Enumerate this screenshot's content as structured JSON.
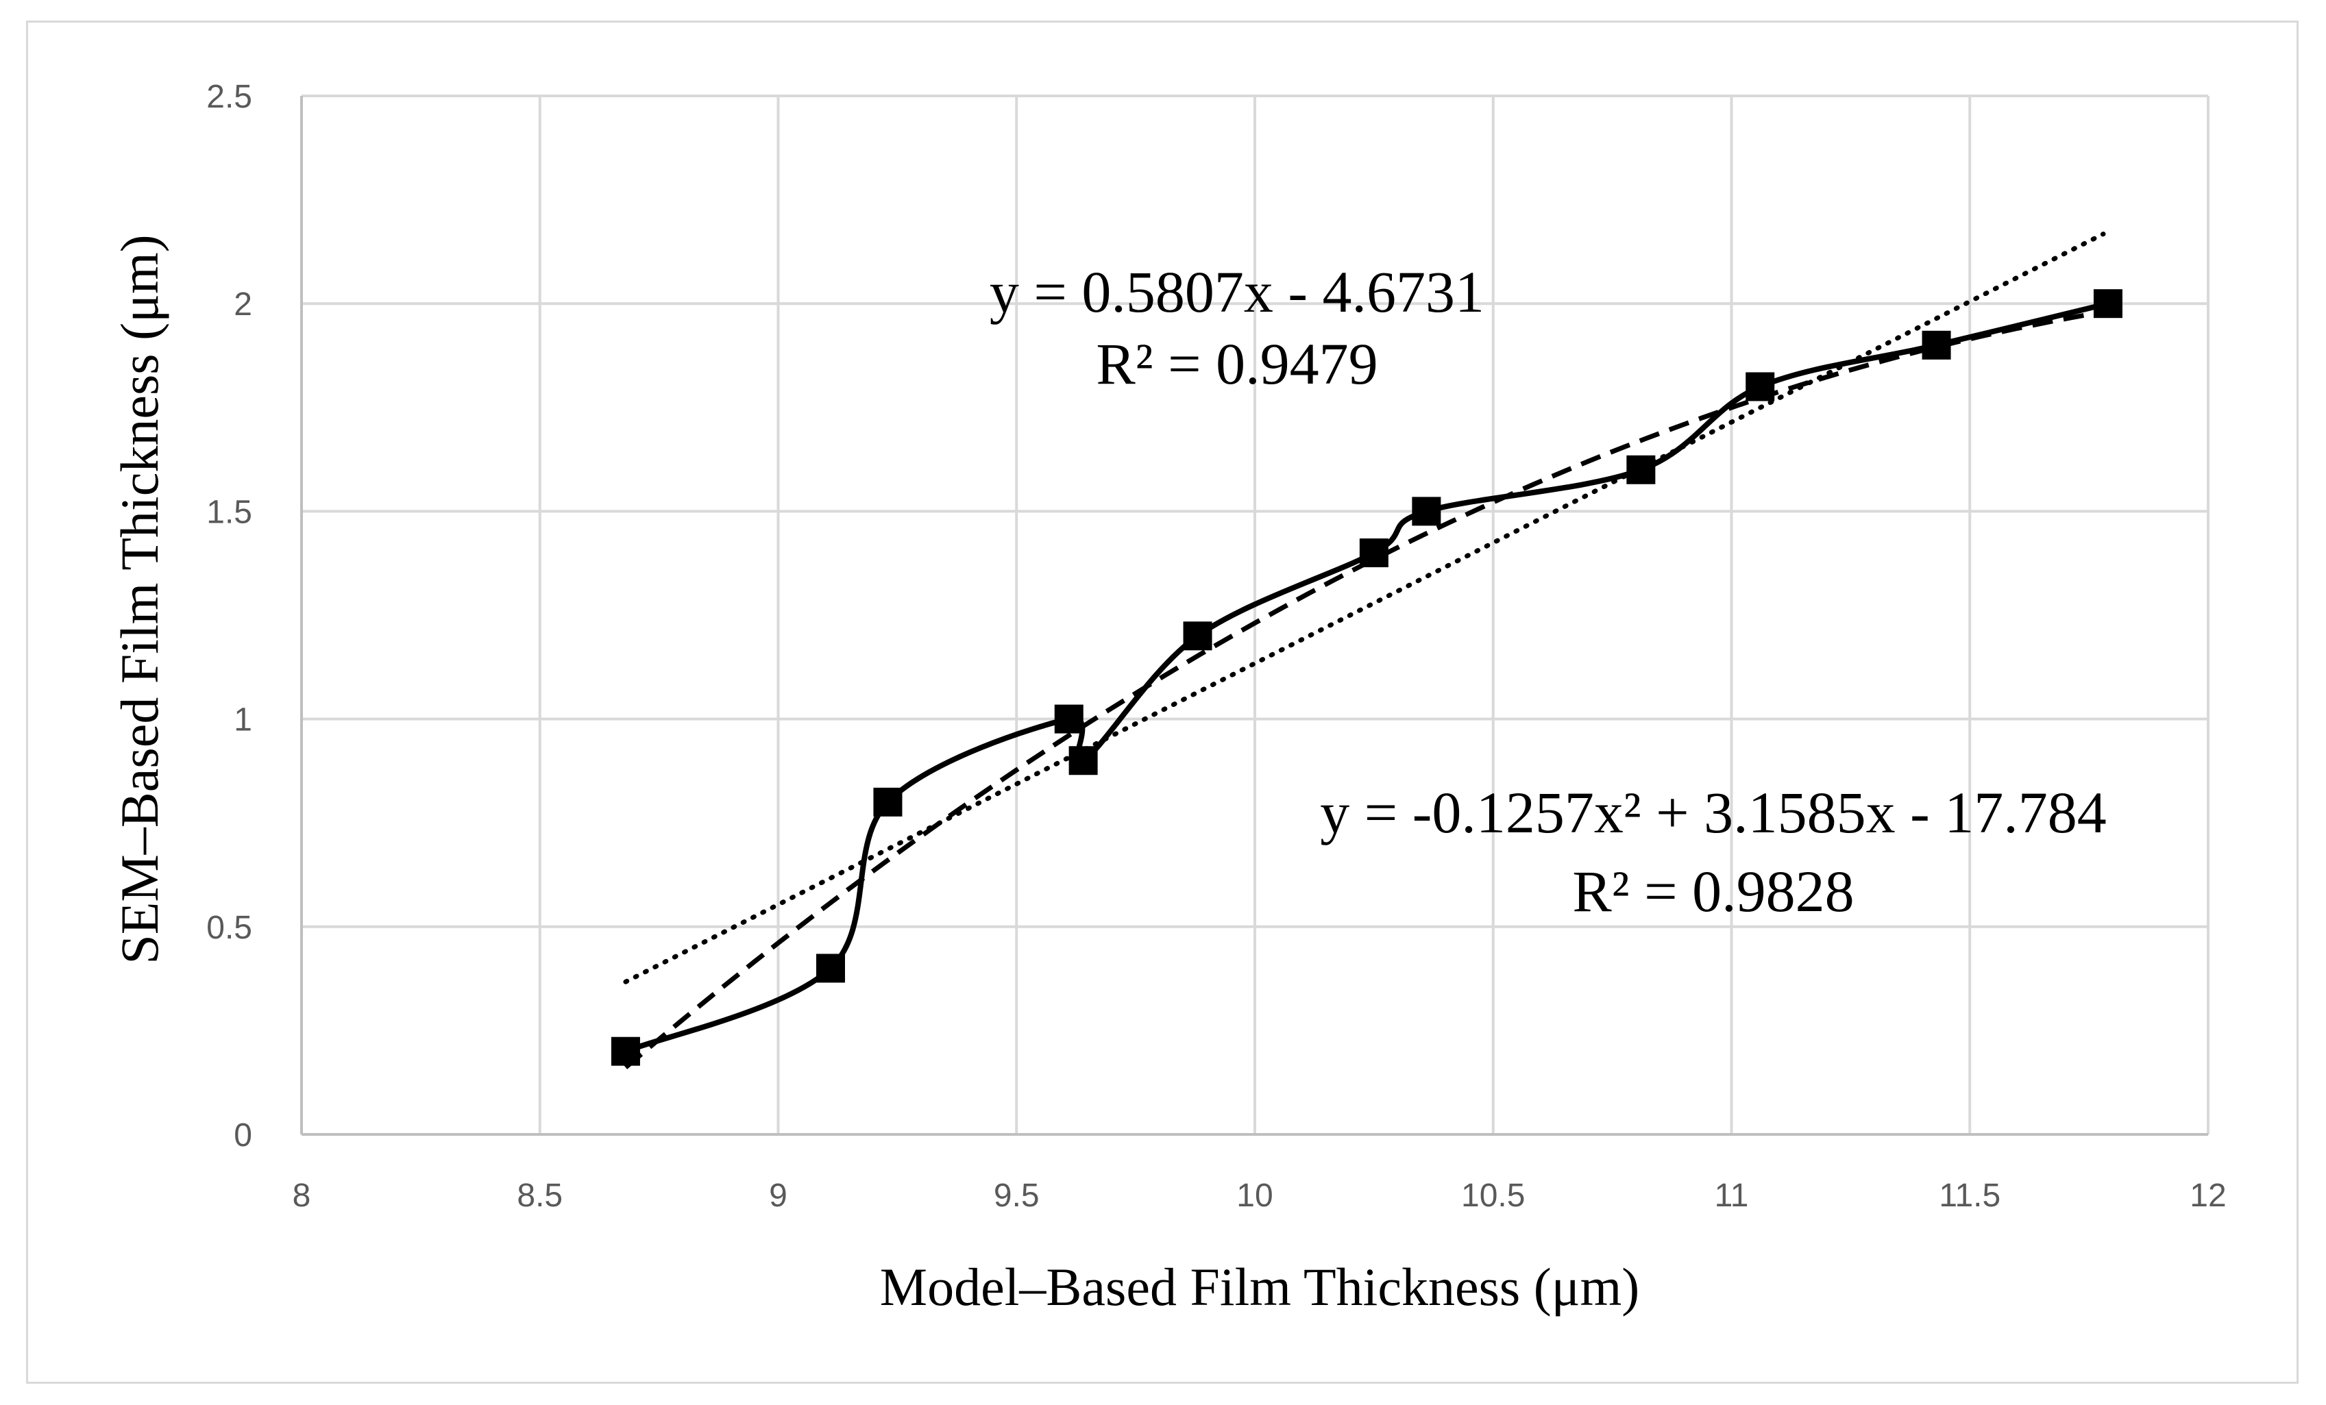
{
  "chart_data": {
    "type": "scatter",
    "xlabel": "Model–Based Film Thickness (μm)",
    "ylabel": "SEM–Based Film Thickness (μm)",
    "xlim": [
      8,
      12
    ],
    "ylim": [
      0,
      2.5
    ],
    "x_ticks": [
      8,
      8.5,
      9,
      9.5,
      10,
      10.5,
      11,
      11.5,
      12
    ],
    "y_ticks": [
      0,
      0.5,
      1,
      1.5,
      2,
      2.5
    ],
    "x_tick_labels": [
      "8",
      "8.5",
      "9",
      "9.5",
      "10",
      "10.5",
      "11",
      "11.5",
      "12"
    ],
    "y_tick_labels": [
      "0",
      "0.5",
      "1",
      "1.5",
      "2",
      "2.5"
    ],
    "grid": true,
    "legend": "none",
    "series": [
      {
        "marker": "square",
        "line": "smoothed solid",
        "color": "#000000",
        "x": [
          8.68,
          9.11,
          9.23,
          9.61,
          9.64,
          9.88,
          10.25,
          10.36,
          10.81,
          11.06,
          11.43,
          11.79
        ],
        "y": [
          0.2,
          0.4,
          0.8,
          1.0,
          0.9,
          1.2,
          1.4,
          1.5,
          1.6,
          1.8,
          1.9,
          2.0
        ]
      }
    ],
    "trendlines": [
      {
        "kind": "linear",
        "style": "dotted",
        "coefficients": [
          0.5807,
          -4.6731
        ],
        "equation": "y = 0.5807x - 4.6731",
        "r_squared": "R² = 0.9479"
      },
      {
        "kind": "polynomial",
        "style": "dashed",
        "coefficients": [
          -0.1257,
          3.1585,
          -17.784
        ],
        "equation": "y = -0.1257x² + 3.1585x - 17.784",
        "r_squared": "R² = 0.9828"
      }
    ]
  }
}
